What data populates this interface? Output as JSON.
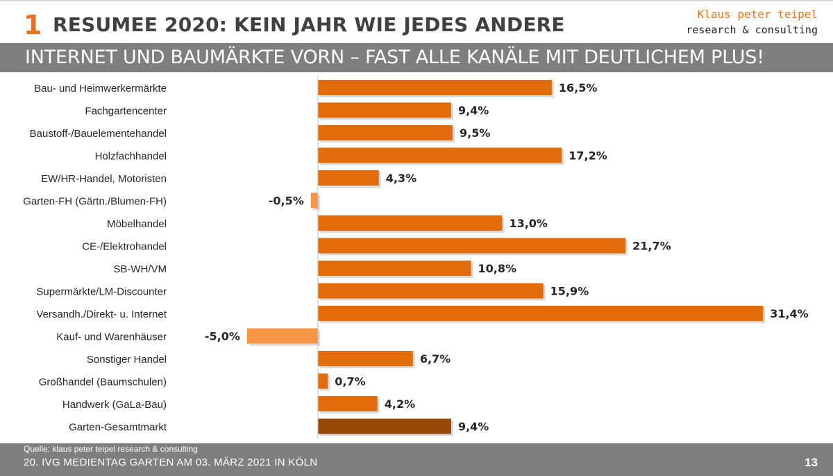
{
  "header": {
    "number": "1",
    "title": "RESUMEE 2020: KEIN JAHR WIE JEDES ANDERE",
    "brand_name": "Klaus peter teipel",
    "brand_sub": "research & consulting"
  },
  "headline": "INTERNET UND BAUMÄRKTE VORN – FAST ALLE KANÄLE MIT DEUTLICHEM PLUS!",
  "colors": {
    "positive": "#e36c0a",
    "negative": "#f79646",
    "total": "#974806",
    "grey_bar": "#7f7f7f"
  },
  "chart_data": {
    "type": "bar",
    "orientation": "horizontal",
    "categories": [
      "Bau- und Heimwerkermärkte",
      "Fachgartencenter",
      "Baustoff-/Bauelementehandel",
      "Holzfachhandel",
      "EW/HR-Handel, Motoristen",
      "Garten-FH (Gärtn./Blumen-FH)",
      "Möbelhandel",
      "CE-/Elektrohandel",
      "SB-WH/VM",
      "Supermärkte/LM-Discounter",
      "Versandh./Direkt- u. Internet",
      "Kauf- und Warenhäuser",
      "Sonstiger Handel",
      "Großhandel (Baumschulen)",
      "Handwerk (GaLa-Bau)",
      "Garten-Gesamtmarkt"
    ],
    "values": [
      16.5,
      9.4,
      9.5,
      17.2,
      4.3,
      -0.5,
      13.0,
      21.7,
      10.8,
      15.9,
      31.4,
      -5.0,
      6.7,
      0.7,
      4.2,
      9.4
    ],
    "labels": [
      "16,5%",
      "9,4%",
      "9,5%",
      "17,2%",
      "4,3%",
      "-0,5%",
      "13,0%",
      "21,7%",
      "10,8%",
      "15,9%",
      "31,4%",
      "-5,0%",
      "6,7%",
      "0,7%",
      "4,2%",
      "9,4%"
    ],
    "highlight_index": 15,
    "title": "",
    "xlabel": "",
    "ylabel": "",
    "xlim": [
      -5,
      31.4
    ],
    "grid": false,
    "legend": "none"
  },
  "footer": {
    "source": "Quelle: klaus peter teipel research & consulting",
    "event": "20. IVG MEDIENTAG GARTEN AM 03. MÄRZ 2021 IN KÖLN",
    "page": "13"
  }
}
